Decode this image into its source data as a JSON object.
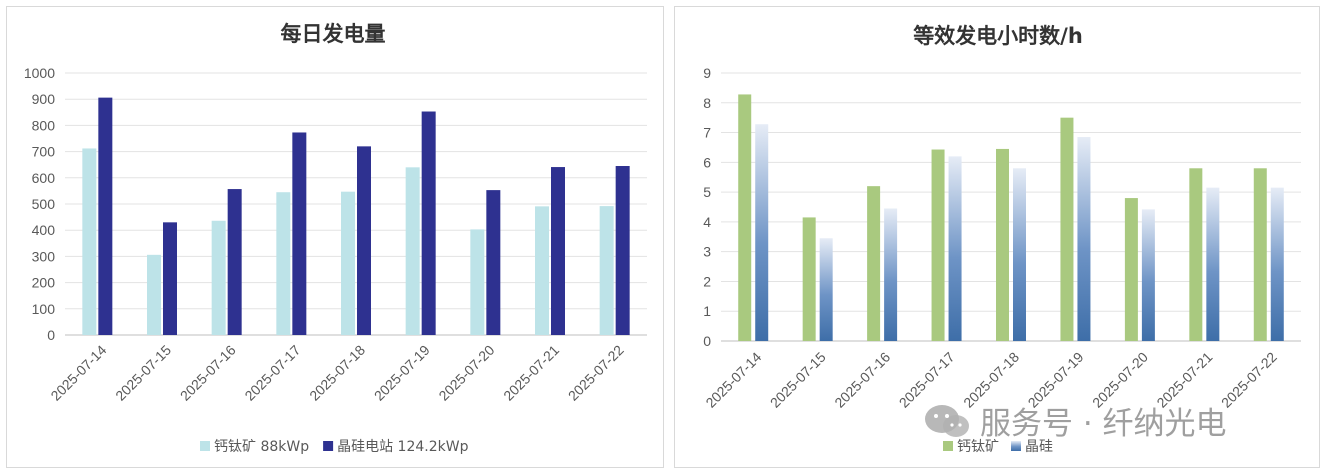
{
  "chart_data": [
    {
      "type": "bar",
      "title": "每日发电量",
      "categories": [
        "2025-07-14",
        "2025-07-15",
        "2025-07-16",
        "2025-07-17",
        "2025-07-18",
        "2025-07-19",
        "2025-07-20",
        "2025-07-21",
        "2025-07-22"
      ],
      "series": [
        {
          "name": "钙钛矿 88kWp",
          "color": "#bde3e8",
          "values": [
            712,
            306,
            436,
            545,
            547,
            640,
            403,
            491,
            492
          ]
        },
        {
          "name": "晶硅电站 124.2kWp",
          "color": "#2e3190",
          "values": [
            906,
            430,
            557,
            773,
            720,
            853,
            553,
            641,
            645
          ]
        }
      ],
      "ylim": [
        0,
        1000
      ],
      "yticks": [
        0,
        100,
        200,
        300,
        400,
        500,
        600,
        700,
        800,
        900,
        1000
      ],
      "grid": true,
      "legend_position": "bottom"
    },
    {
      "type": "bar",
      "title": "等效发电小时数/h",
      "categories": [
        "2025-07-14",
        "2025-07-15",
        "2025-07-16",
        "2025-07-17",
        "2025-07-18",
        "2025-07-19",
        "2025-07-20",
        "2025-07-21",
        "2025-07-22"
      ],
      "series": [
        {
          "name": "钙钛矿",
          "color": "#a9c97f",
          "values": [
            8.28,
            4.15,
            5.2,
            6.43,
            6.45,
            7.5,
            4.8,
            5.8,
            5.8
          ]
        },
        {
          "name": "晶硅",
          "color": "#3e6ea8",
          "values": [
            7.28,
            3.45,
            4.45,
            6.2,
            5.8,
            6.85,
            4.42,
            5.15,
            5.15
          ]
        }
      ],
      "ylim": [
        0,
        9
      ],
      "yticks": [
        0,
        1,
        2,
        3,
        4,
        5,
        6,
        7,
        8,
        9
      ],
      "grid": true,
      "legend_position": "bottom"
    }
  ],
  "watermark": {
    "text": "服务号 · 纤纳光电",
    "icon": "wechat-icon"
  }
}
